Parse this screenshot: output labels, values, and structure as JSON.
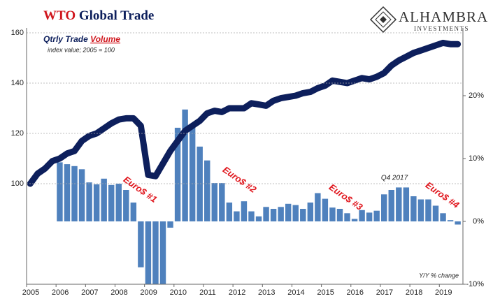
{
  "chart_data": {
    "type": "bar_line",
    "title": {
      "accent": "WTO",
      "text": "Global Trade"
    },
    "subtitle": {
      "text": "Qtrly Trade",
      "accent": "Volume"
    },
    "note": "index value; 2005 = 100",
    "y2_axis_label": "Y/Y % change",
    "brand": {
      "name": "ALHAMBRA",
      "tagline": "INVESTMENTS"
    },
    "annotations": [
      "Euro$ #1",
      "Euro$ #2",
      "Euro$ #3",
      "Euro$ #4",
      "Q4 2017"
    ],
    "xlim": [
      2005,
      2019.8
    ],
    "xticks": [
      2005,
      2006,
      2007,
      2008,
      2009,
      2010,
      2011,
      2012,
      2013,
      2014,
      2015,
      2016,
      2017,
      2018,
      2019
    ],
    "ylim": [
      60,
      160
    ],
    "yticks": [
      100,
      120,
      140,
      160
    ],
    "y2lim": [
      -10,
      30
    ],
    "y2ticks": [
      {
        "value": -10,
        "label": "-10%"
      },
      {
        "value": 0,
        "label": "0%"
      },
      {
        "value": 10,
        "label": "10%"
      },
      {
        "value": 20,
        "label": "20%"
      }
    ],
    "grid": true,
    "series": [
      {
        "type": "line",
        "color": "#0d1f5c",
        "x": [
          2005.125,
          2005.375,
          2005.625,
          2005.875,
          2006.125,
          2006.375,
          2006.625,
          2006.875,
          2007.125,
          2007.375,
          2007.625,
          2007.875,
          2008.125,
          2008.375,
          2008.625,
          2008.875,
          2009.125,
          2009.375,
          2009.625,
          2009.875,
          2010.125,
          2010.375,
          2010.625,
          2010.875,
          2011.125,
          2011.375,
          2011.625,
          2011.875,
          2012.125,
          2012.375,
          2012.625,
          2012.875,
          2013.125,
          2013.375,
          2013.625,
          2013.875,
          2014.125,
          2014.375,
          2014.625,
          2014.875,
          2015.125,
          2015.375,
          2015.625,
          2015.875,
          2016.125,
          2016.375,
          2016.625,
          2016.875,
          2017.125,
          2017.375,
          2017.625,
          2017.875,
          2018.125,
          2018.375,
          2018.625,
          2018.875,
          2019.125,
          2019.375,
          2019.625
        ],
        "values": [
          100,
          104,
          106,
          109,
          110,
          112,
          113,
          117,
          119,
          120,
          122,
          124,
          125.5,
          126,
          126,
          123,
          103.5,
          103,
          108,
          113,
          117,
          121,
          123,
          125,
          128,
          129,
          128.5,
          130,
          130,
          130,
          132,
          131.5,
          131,
          133,
          134,
          134.5,
          135,
          136,
          136.5,
          138,
          139,
          141,
          140.5,
          140,
          141,
          142,
          141.5,
          142.5,
          144,
          147,
          149,
          150.5,
          152,
          153,
          154,
          155,
          156,
          155.5,
          155.5
        ]
      },
      {
        "type": "bar",
        "axis": "y2",
        "color": "#4f81bd",
        "x": [
          2006.125,
          2006.375,
          2006.625,
          2006.875,
          2007.125,
          2007.375,
          2007.625,
          2007.875,
          2008.125,
          2008.375,
          2008.625,
          2008.875,
          2009.125,
          2009.375,
          2009.625,
          2009.875,
          2010.125,
          2010.375,
          2010.625,
          2010.875,
          2011.125,
          2011.375,
          2011.625,
          2011.875,
          2012.125,
          2012.375,
          2012.625,
          2012.875,
          2013.125,
          2013.375,
          2013.625,
          2013.875,
          2014.125,
          2014.375,
          2014.625,
          2014.875,
          2015.125,
          2015.375,
          2015.625,
          2015.875,
          2016.125,
          2016.375,
          2016.625,
          2016.875,
          2017.125,
          2017.375,
          2017.625,
          2017.875,
          2018.125,
          2018.375,
          2018.625,
          2018.875,
          2019.125,
          2019.375,
          2019.625
        ],
        "values": [
          9.4,
          9.1,
          8.8,
          8.3,
          6.2,
          5.9,
          6.8,
          5.8,
          6.0,
          5.0,
          3.0,
          -7.3,
          -12,
          -13,
          -11,
          -1.0,
          14.9,
          17.8,
          14.9,
          11.9,
          9.7,
          6.1,
          6.1,
          3.0,
          1.6,
          3.2,
          1.6,
          0.8,
          2.3,
          2.0,
          2.3,
          2.8,
          2.6,
          2.0,
          3.0,
          4.5,
          3.6,
          2.2,
          2.0,
          1.3,
          0.4,
          1.8,
          1.4,
          1.7,
          4.3,
          5.0,
          5.4,
          5.4,
          4.0,
          3.5,
          3.5,
          2.5,
          1.3,
          0.2,
          -0.5
        ]
      }
    ]
  }
}
